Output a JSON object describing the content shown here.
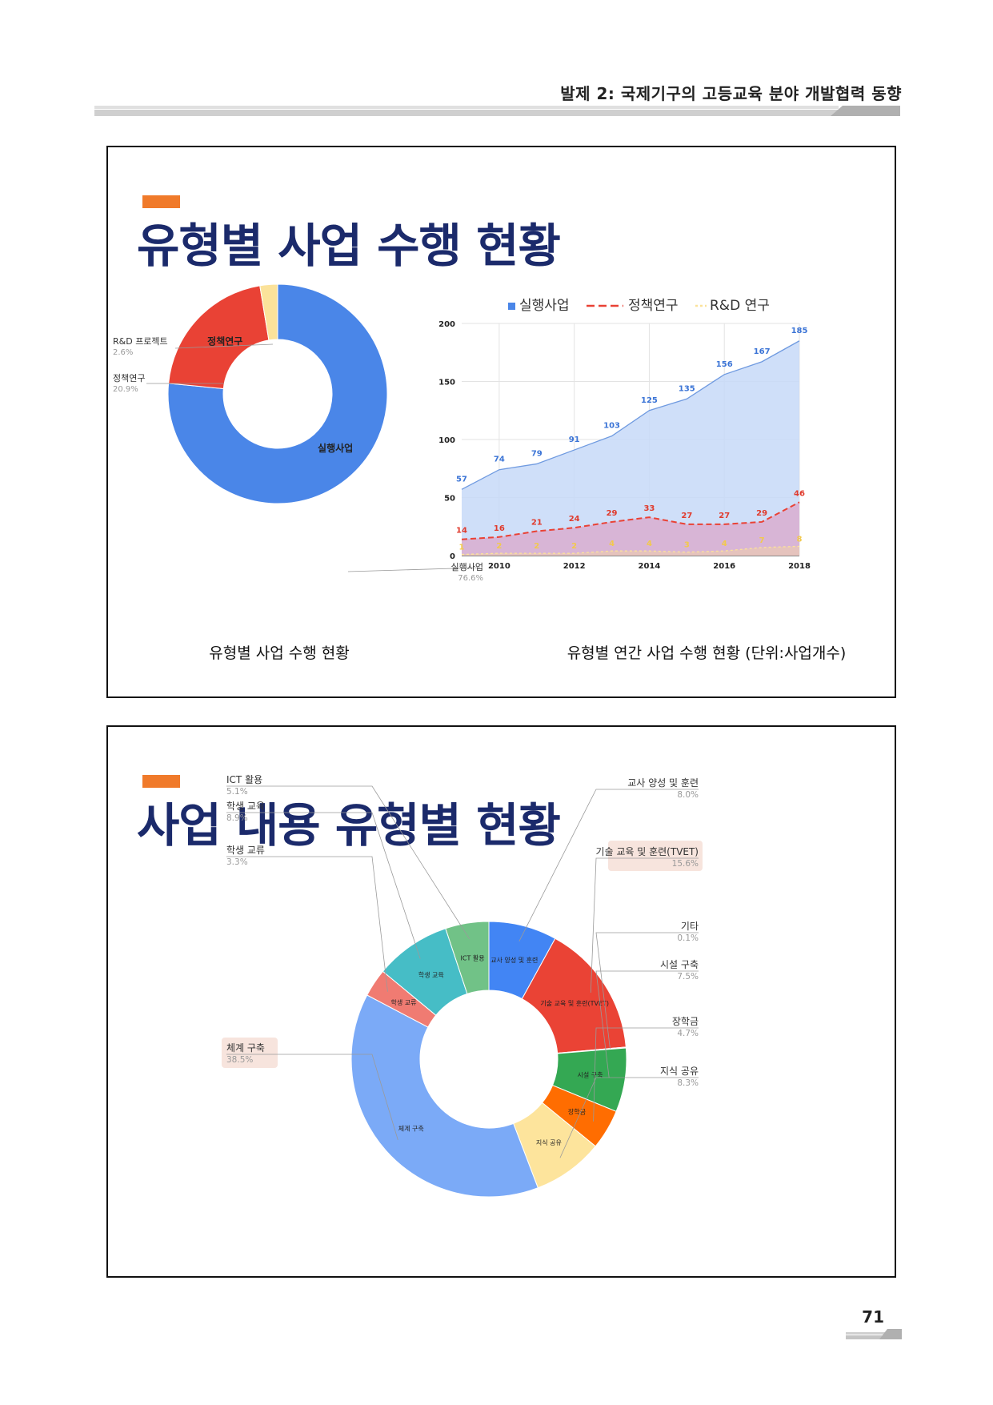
{
  "header": {
    "title": "발제 2: 국제기구의 고등교육 분야 개발협력 동향"
  },
  "page": {
    "number": "71"
  },
  "colors": {
    "accent": "#f07a2a",
    "title": "#1b2a6b",
    "blue": "#4a86e8",
    "red": "#e94235",
    "yellow": "#fbe29a"
  },
  "slide1": {
    "title": "유형별 사업 수행 현황",
    "caption_left": "유형별 사업 수행 현황",
    "caption_right": "유형별 연간 사업 수행 현황 (단위:사업개수)"
  },
  "slide2": {
    "title": "사업 내용 유형별 현황"
  },
  "chart_data": [
    {
      "type": "pie",
      "donut": true,
      "slices": [
        {
          "label": "실행사업",
          "value": 76.6,
          "percent": "76.6%",
          "color": "#4a86e8"
        },
        {
          "label": "정책연구",
          "value": 20.9,
          "percent": "20.9%",
          "color": "#e94235"
        },
        {
          "label": "R&D 프로젝트",
          "value": 2.6,
          "percent": "2.6%",
          "color": "#fbe29a"
        }
      ]
    },
    {
      "type": "area",
      "x": [
        2009,
        2010,
        2011,
        2012,
        2013,
        2014,
        2015,
        2016,
        2017,
        2018
      ],
      "xticks": [
        "2010",
        "2012",
        "2014",
        "2016",
        "2018"
      ],
      "ylim": [
        0,
        200
      ],
      "yticks": [
        "0",
        "50",
        "100",
        "150",
        "200"
      ],
      "grid": true,
      "legend_position": "top",
      "series": [
        {
          "name": "실행사업",
          "values": [
            57,
            74,
            79,
            91,
            103,
            125,
            135,
            156,
            167,
            185
          ],
          "color": "#4a86e8"
        },
        {
          "name": "정책연구",
          "values": [
            14,
            16,
            21,
            24,
            29,
            33,
            27,
            27,
            29,
            46
          ],
          "color": "#e94235"
        },
        {
          "name": "R&D 연구",
          "values": [
            1,
            2,
            2,
            2,
            4,
            4,
            3,
            4,
            7,
            8
          ],
          "color": "#fbe29a"
        }
      ]
    },
    {
      "type": "pie",
      "donut": true,
      "slices": [
        {
          "label": "교사 양성 및 훈련",
          "value": 8.0,
          "percent": "8.0%",
          "color": "#4285f4"
        },
        {
          "label": "기술 교육 및 훈련(TVET)",
          "value": 15.6,
          "percent": "15.6%",
          "color": "#ea4335"
        },
        {
          "label": "기타",
          "value": 0.1,
          "percent": "0.1%",
          "color": "#ea4335"
        },
        {
          "label": "시설 구축",
          "value": 7.5,
          "percent": "7.5%",
          "color": "#34a853"
        },
        {
          "label": "장학금",
          "value": 4.7,
          "percent": "4.7%",
          "color": "#ff6d01"
        },
        {
          "label": "지식 공유",
          "value": 8.3,
          "percent": "8.3%",
          "color": "#fde49c"
        },
        {
          "label": "체계 구축",
          "value": 38.5,
          "percent": "38.5%",
          "color": "#7baaf7"
        },
        {
          "label": "학생 교류",
          "value": 3.3,
          "percent": "3.3%",
          "color": "#f07b72"
        },
        {
          "label": "학생 교육",
          "value": 8.9,
          "percent": "8.9%",
          "color": "#46bdc6"
        },
        {
          "label": "ICT 활용",
          "value": 5.1,
          "percent": "5.1%",
          "color": "#71c287"
        }
      ]
    }
  ]
}
